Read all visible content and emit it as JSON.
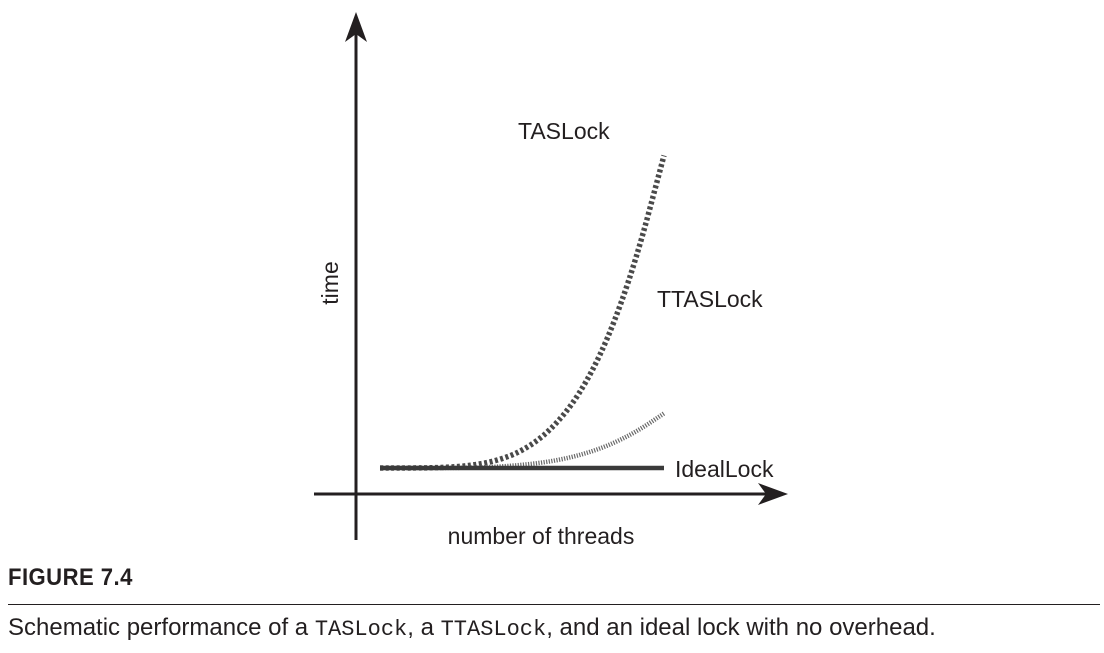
{
  "chart_data": {
    "type": "line",
    "xlabel": "number of threads",
    "ylabel": "time",
    "grid": false,
    "legend": "none",
    "x": [
      0,
      0.1,
      0.2,
      0.3,
      0.4,
      0.5,
      0.6,
      0.7,
      0.8,
      0.9,
      1.0
    ],
    "series": [
      {
        "name": "TASLock",
        "style": "dashed",
        "color": "#4a4a4a",
        "x": [
          0,
          0.1,
          0.2,
          0.3,
          0.4,
          0.5,
          0.6,
          0.7,
          0.8,
          0.9,
          1.0
        ],
        "values": [
          0.0,
          0.0,
          0.001,
          0.007,
          0.025,
          0.067,
          0.15,
          0.29,
          0.51,
          0.83,
          1.26
        ]
      },
      {
        "name": "TTASLock",
        "style": "dotted",
        "color": "#6a6a6a",
        "x": [
          0,
          0.1,
          0.2,
          0.3,
          0.4,
          0.5,
          0.6,
          0.7,
          0.8,
          0.9,
          1.0
        ],
        "values": [
          0.0,
          0.0,
          0.0,
          0.001,
          0.004,
          0.012,
          0.026,
          0.05,
          0.088,
          0.144,
          0.22
        ]
      },
      {
        "name": "IdealLock",
        "style": "solid",
        "color": "#3a3a3a",
        "x": [
          0,
          1.0
        ],
        "values": [
          0.0,
          0.0
        ]
      }
    ]
  },
  "figure": {
    "label": "FIGURE 7.4",
    "caption_parts": [
      "Schematic performance of a ",
      "TASLock",
      ", a ",
      "TTASLock",
      ", and an ideal lock with no overhead."
    ]
  }
}
